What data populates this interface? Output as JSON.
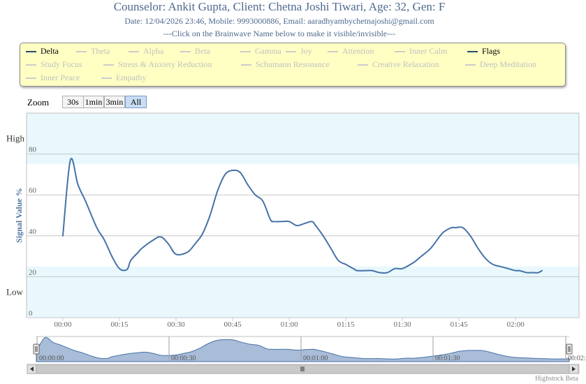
{
  "header": {
    "title": "Counselor: Ankit Gupta, Client: Chetna Joshi Tiwari, Age: 32, Gen: F",
    "subtitle": "Date: 12/04/2026 23:46, Mobile: 9993000886, Email: aaradhyambychetnajoshi@gmail.com",
    "hint": "---Click on the Brainwave Name below to make it visible/invisible---"
  },
  "legend": {
    "items": [
      {
        "label": "Delta",
        "active": true
      },
      {
        "label": "Theta",
        "active": false
      },
      {
        "label": "Alpha",
        "active": false
      },
      {
        "label": "Beta",
        "active": false
      },
      {
        "label": "Gamma",
        "active": false
      },
      {
        "label": "Joy",
        "active": false
      },
      {
        "label": "Attention",
        "active": false
      },
      {
        "label": "Inner Calm",
        "active": false
      },
      {
        "label": "Flags",
        "active": true
      },
      {
        "label": "Study Focus",
        "active": false
      },
      {
        "label": "Stress & Anxiety Reduction",
        "active": false
      },
      {
        "label": "Schumann Resonance",
        "active": false
      },
      {
        "label": "Creative Relaxation",
        "active": false
      },
      {
        "label": "Deep Meditation",
        "active": false
      },
      {
        "label": "Inner Peace",
        "active": false
      },
      {
        "label": "Empathy",
        "active": false
      }
    ]
  },
  "zoom": {
    "label": "Zoom",
    "buttons": [
      {
        "label": "30s",
        "selected": false
      },
      {
        "label": "1min",
        "selected": false
      },
      {
        "label": "3min",
        "selected": false
      },
      {
        "label": "All",
        "selected": true
      }
    ]
  },
  "credit": "Highstock Beta",
  "colors": {
    "series": "#4572a7",
    "band": "#e8f8fd",
    "legend_active": "#274b6d",
    "legend_inactive": "#cccccc",
    "legend_text_inactive": "#c0c0c0",
    "axis_title": "#4d759e",
    "navigator_fill": "#a9bcd8"
  },
  "chart_data": {
    "type": "line",
    "ylabel": "Signal Value %",
    "xlabel": "",
    "ylim": [
      0,
      100
    ],
    "yticks": [
      0,
      20,
      40,
      60,
      80
    ],
    "bands": [
      {
        "from": 0,
        "to": 25,
        "label": "Low"
      },
      {
        "from": 75,
        "to": 100,
        "label": "High"
      }
    ],
    "xticks": [
      "00:00",
      "00:15",
      "00:30",
      "00:45",
      "01:00",
      "01:15",
      "01:30",
      "01:45",
      "02:00"
    ],
    "grid": true,
    "series": [
      {
        "name": "Delta",
        "x": [
          0,
          2,
          4,
          6,
          9,
          11,
          13,
          15,
          17,
          18,
          20,
          21,
          24,
          26,
          28,
          30,
          33,
          35,
          37,
          39,
          41,
          43,
          45,
          47,
          49,
          51,
          53,
          55,
          56,
          58,
          60,
          62,
          64,
          66,
          67,
          69,
          71,
          73,
          75,
          77,
          78,
          80,
          82,
          84,
          86,
          88,
          90,
          93,
          95,
          97,
          98,
          100,
          101,
          103,
          104,
          106,
          108,
          110,
          112,
          114,
          116,
          118,
          120,
          121,
          123,
          124,
          125,
          126,
          127
        ],
        "y": [
          40,
          77,
          65,
          57,
          44,
          38,
          30,
          24,
          23.5,
          28,
          32,
          34,
          38,
          39.5,
          36,
          31,
          32,
          36,
          41,
          50,
          62,
          70,
          72,
          71,
          65,
          60,
          57,
          48,
          47,
          47,
          47,
          45,
          46,
          47,
          45,
          40,
          34,
          28,
          26,
          24,
          23,
          23,
          23,
          22,
          22,
          24,
          24,
          27,
          30,
          33,
          35,
          40,
          42,
          44,
          44,
          44,
          40,
          34,
          29,
          26,
          25,
          24,
          23,
          23,
          22,
          22,
          22,
          22,
          23
        ]
      }
    ],
    "navigator_ticks": [
      "00:00:00",
      "00:00:30",
      "00:01:00",
      "00:01:30",
      "00:02:"
    ]
  }
}
